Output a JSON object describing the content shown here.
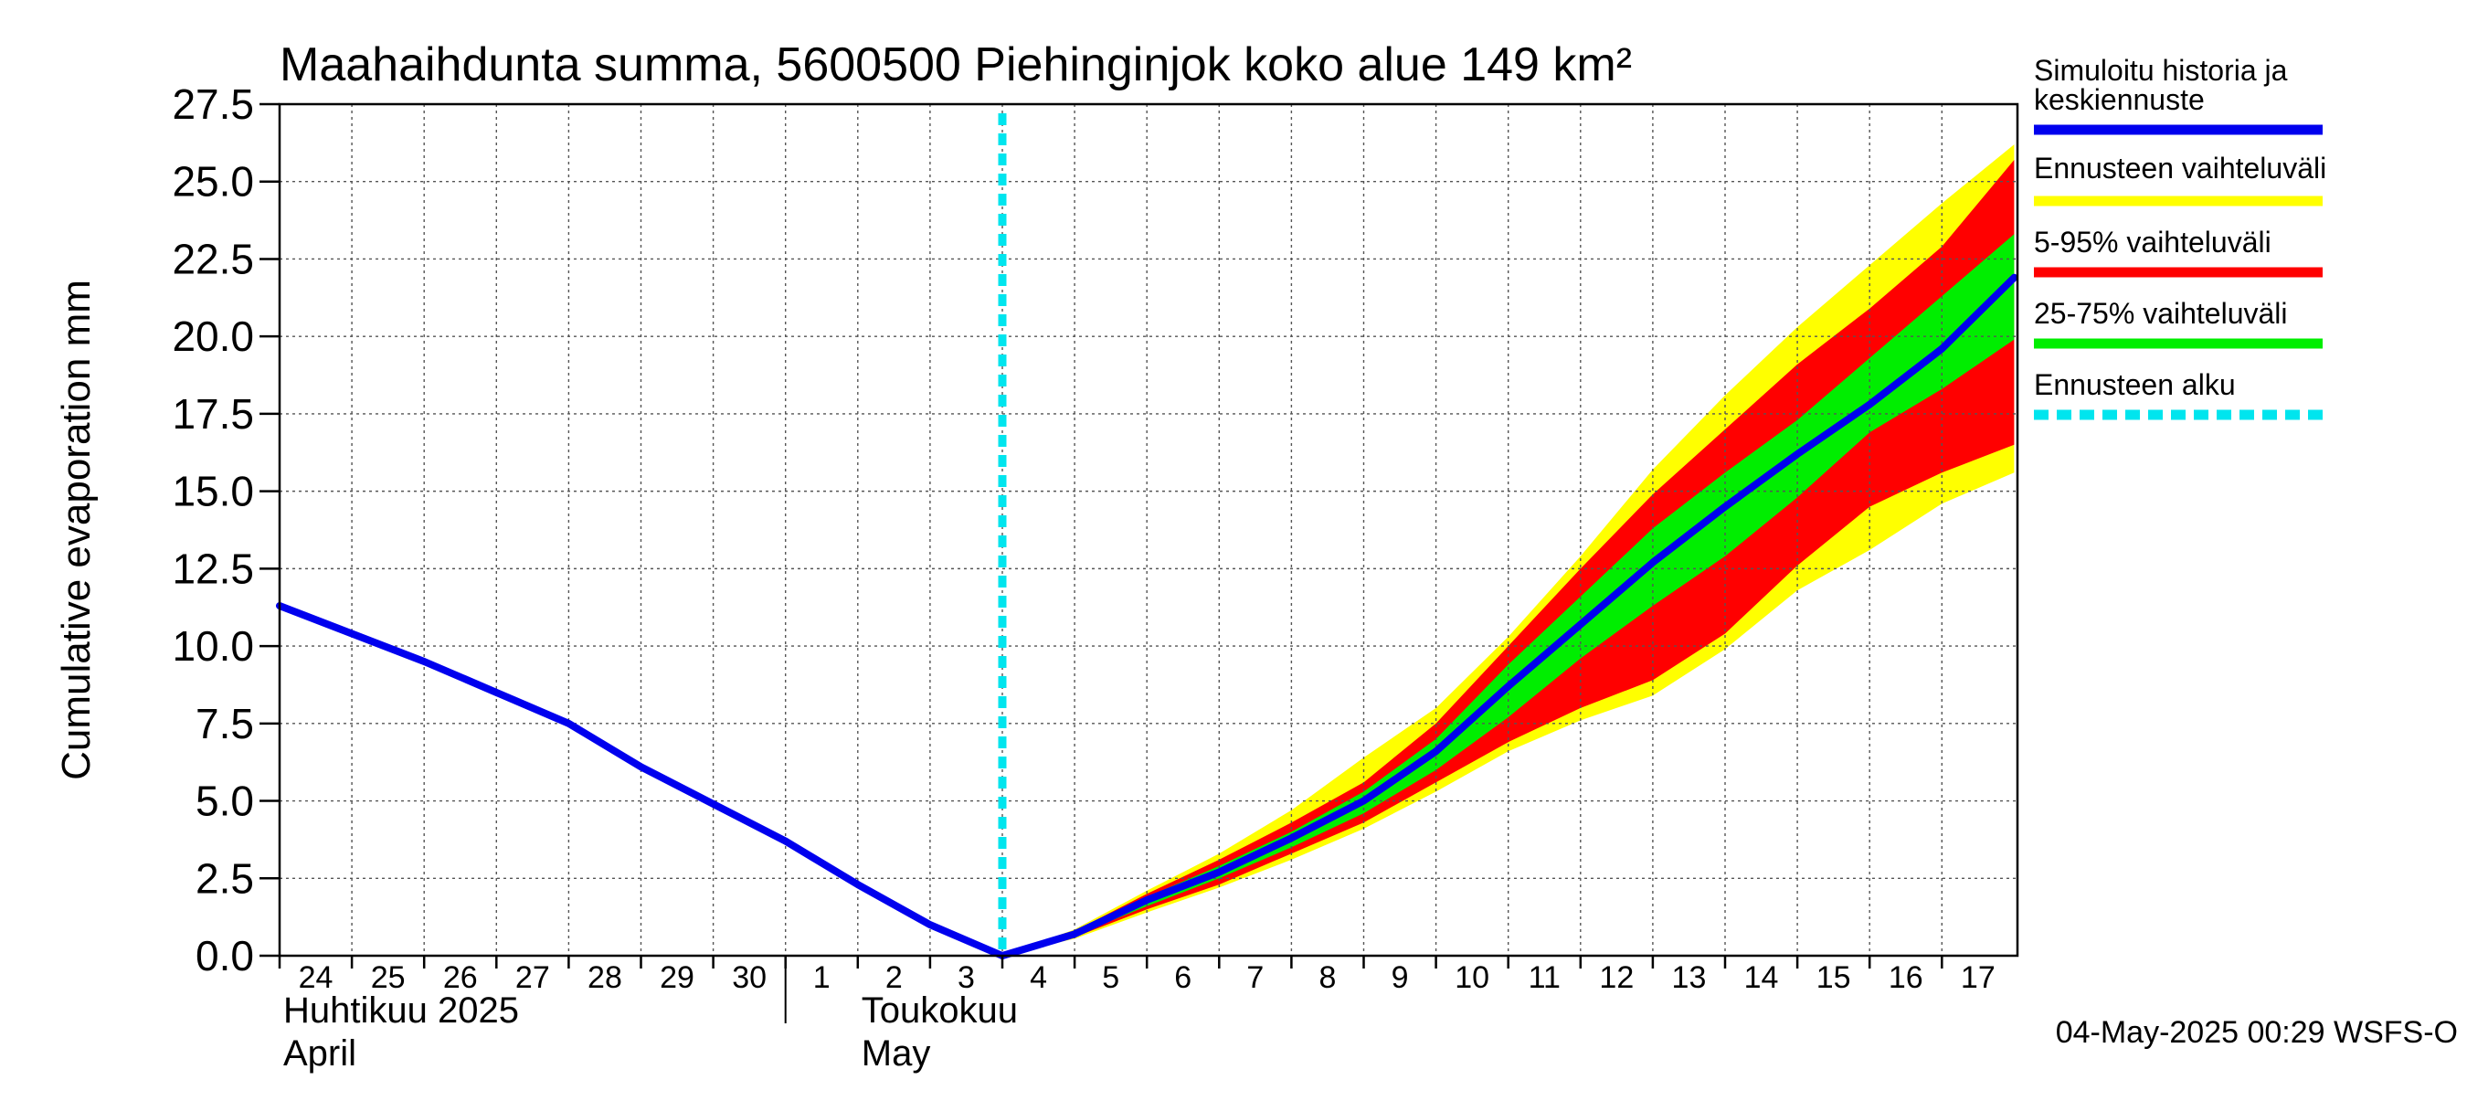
{
  "chart_data": {
    "type": "area",
    "title": "Maahaihdunta summa, 5600500 Piehinginjok koko alue 149 km²",
    "ylabel": "Cumulative evaporation   mm",
    "xlabel": "",
    "ylim": [
      0,
      27.5
    ],
    "yticks": [
      "0.0",
      "2.5",
      "5.0",
      "7.5",
      "10.0",
      "12.5",
      "15.0",
      "17.5",
      "20.0",
      "22.5",
      "25.0",
      "27.5"
    ],
    "x_day_range": [
      0,
      24
    ],
    "x_ticks": [
      {
        "label": "24",
        "day": 0
      },
      {
        "label": "25",
        "day": 1
      },
      {
        "label": "26",
        "day": 2
      },
      {
        "label": "27",
        "day": 3
      },
      {
        "label": "28",
        "day": 4
      },
      {
        "label": "29",
        "day": 5
      },
      {
        "label": "30",
        "day": 6
      },
      {
        "label": "1",
        "day": 7
      },
      {
        "label": "2",
        "day": 8
      },
      {
        "label": "3",
        "day": 9
      },
      {
        "label": "4",
        "day": 10
      },
      {
        "label": "5",
        "day": 11
      },
      {
        "label": "6",
        "day": 12
      },
      {
        "label": "7",
        "day": 13
      },
      {
        "label": "8",
        "day": 14
      },
      {
        "label": "9",
        "day": 15
      },
      {
        "label": "10",
        "day": 16
      },
      {
        "label": "11",
        "day": 17
      },
      {
        "label": "12",
        "day": 18
      },
      {
        "label": "13",
        "day": 19
      },
      {
        "label": "14",
        "day": 20
      },
      {
        "label": "15",
        "day": 21
      },
      {
        "label": "16",
        "day": 22
      },
      {
        "label": "17",
        "day": 23
      }
    ],
    "month_labels": [
      {
        "line1": "Huhtikuu  2025",
        "line2": "April",
        "day": 0
      },
      {
        "line1": "Toukokuu",
        "line2": "May",
        "day": 8
      }
    ],
    "month_divider_day": 7,
    "forecast_start_day": 10,
    "legend_position": "right",
    "legend": [
      {
        "label": "Simuloitu historia ja keskiennuste",
        "color": "#0000ee",
        "style": "solid"
      },
      {
        "label": "Ennusteen vaihteluväli",
        "color": "#ffff00",
        "style": "solid"
      },
      {
        "label": "5-95% vaihteluväli",
        "color": "#ff0000",
        "style": "solid"
      },
      {
        "label": "25-75% vaihteluväli",
        "color": "#00ee00",
        "style": "solid"
      },
      {
        "label": "Ennusteen alku",
        "color": "#00e5ee",
        "style": "dashed"
      }
    ],
    "history": {
      "name": "Simuloitu historia",
      "x": [
        0,
        1,
        2,
        3,
        4,
        5,
        6,
        7,
        8,
        9,
        10
      ],
      "y": [
        11.3,
        10.4,
        9.5,
        8.5,
        7.5,
        6.1,
        4.9,
        3.7,
        2.3,
        1.0,
        0.0
      ]
    },
    "forecast_x": [
      10,
      11,
      12,
      13,
      14,
      15,
      16,
      17,
      18,
      19,
      20,
      21,
      22,
      23,
      24
    ],
    "median": [
      0.0,
      0.7,
      1.8,
      2.7,
      3.8,
      5.0,
      6.6,
      8.7,
      10.7,
      12.7,
      14.5,
      16.2,
      17.8,
      19.6,
      21.9
    ],
    "p25": [
      0.0,
      0.65,
      1.6,
      2.5,
      3.5,
      4.6,
      6.0,
      7.7,
      9.6,
      11.3,
      12.9,
      14.8,
      16.9,
      18.3,
      19.9
    ],
    "p75": [
      0.0,
      0.75,
      1.9,
      2.9,
      4.0,
      5.3,
      7.0,
      9.4,
      11.6,
      13.8,
      15.6,
      17.3,
      19.3,
      21.3,
      23.3
    ],
    "p05": [
      0.0,
      0.6,
      1.5,
      2.3,
      3.3,
      4.3,
      5.6,
      6.9,
      8.0,
      8.9,
      10.4,
      12.6,
      14.5,
      15.6,
      16.5
    ],
    "p95": [
      0.0,
      0.8,
      2.0,
      3.1,
      4.3,
      5.6,
      7.5,
      10.0,
      12.5,
      14.9,
      17.0,
      19.1,
      20.9,
      22.9,
      25.7
    ],
    "min": [
      0.0,
      0.55,
      1.4,
      2.2,
      3.1,
      4.1,
      5.3,
      6.6,
      7.6,
      8.4,
      9.9,
      11.8,
      13.1,
      14.6,
      15.6
    ],
    "max": [
      0.0,
      0.85,
      2.1,
      3.3,
      4.7,
      6.4,
      8.0,
      10.3,
      12.9,
      15.7,
      18.1,
      20.3,
      22.3,
      24.3,
      26.2
    ]
  },
  "footer": {
    "timestamp": "04-May-2025 00:29 WSFS-O"
  }
}
